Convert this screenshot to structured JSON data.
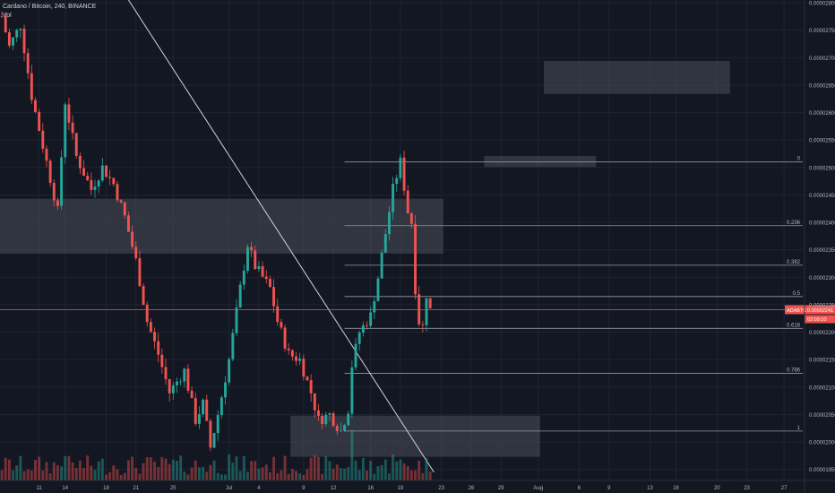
{
  "header": {
    "title": "Cardano / Bitcoin, 240, BINANCE",
    "volume_label": "Vol"
  },
  "colors": {
    "background": "#131722",
    "up": "#26a69a",
    "down": "#ef5350",
    "grid": "#1f2433",
    "text": "#b2b5be",
    "price_line": "#ef5350",
    "zone_fill": "#4a4e59",
    "trendline": "#d1d4dc",
    "fib_line": "#9598a1"
  },
  "chart_data": {
    "type": "candlestick",
    "title": "Cardano / Bitcoin, 240, BINANCE",
    "y_axis": {
      "position": "right",
      "range": [
        1.93e-05,
        2.805e-05
      ],
      "ticks": [
        "0.00002800",
        "0.00002750",
        "0.00002700",
        "0.00002650",
        "0.00002600",
        "0.00002550",
        "0.00002500",
        "0.00002450",
        "0.00002400",
        "0.00002350",
        "0.00002300",
        "0.00002250",
        "0.00002200",
        "0.00002150",
        "0.00002100",
        "0.00002050",
        "0.00002000",
        "0.00001950"
      ],
      "tick_values": [
        2.8e-05,
        2.75e-05,
        2.7e-05,
        2.65e-05,
        2.6e-05,
        2.55e-05,
        2.5e-05,
        2.45e-05,
        2.4e-05,
        2.35e-05,
        2.3e-05,
        2.25e-05,
        2.2e-05,
        2.15e-05,
        2.1e-05,
        2.05e-05,
        2e-05,
        1.95e-05
      ]
    },
    "x_axis": {
      "labels": [
        "11",
        "14",
        "18",
        "21",
        "25",
        "Jul",
        "4",
        "9",
        "12",
        "16",
        "19",
        "23",
        "26",
        "29",
        "Aug",
        "6",
        "9",
        "13",
        "16",
        "20",
        "23",
        "27"
      ],
      "label_slots": [
        10,
        17,
        28,
        36,
        46,
        61,
        69,
        81,
        89,
        99,
        107,
        118,
        126,
        134,
        144,
        155,
        163,
        174,
        181,
        192,
        200,
        210
      ],
      "slot_count": 216
    },
    "grid": true,
    "last_price": {
      "label": "ADABTC",
      "value_text": "0.00002241",
      "value": 2.241e-05,
      "countdown": "02:09:10"
    },
    "fibonacci": [
      {
        "ratio": "0",
        "price": 2.51e-05
      },
      {
        "ratio": "0.236",
        "price": 2.394e-05
      },
      {
        "ratio": "0.382",
        "price": 2.322e-05
      },
      {
        "ratio": "0.5",
        "price": 2.265e-05
      },
      {
        "ratio": "0.618",
        "price": 2.207e-05
      },
      {
        "ratio": "0.786",
        "price": 2.125e-05
      },
      {
        "ratio": "1",
        "price": 2.02e-05
      }
    ],
    "zones": [
      {
        "slot_from": 0,
        "slot_to": 119,
        "price_from": 2.343e-05,
        "price_to": 2.443e-05
      },
      {
        "slot_from": 78,
        "slot_to": 145,
        "price_from": 1.973e-05,
        "price_to": 2.048e-05
      },
      {
        "slot_from": 130,
        "slot_to": 160,
        "price_from": 2.501e-05,
        "price_to": 2.521e-05
      },
      {
        "slot_from": 146,
        "slot_to": 196,
        "price_from": 2.634e-05,
        "price_to": 2.694e-05
      }
    ],
    "trendline": {
      "from": {
        "slot": 34,
        "price": 2.805e-05
      },
      "to": {
        "slot": 116,
        "price": 1.945e-05
      }
    },
    "candle_count": 116,
    "keypoints": [
      [
        0,
        2.775e-05
      ],
      [
        2,
        2.72e-05
      ],
      [
        5,
        2.76e-05
      ],
      [
        8,
        2.63e-05
      ],
      [
        11,
        2.54e-05
      ],
      [
        15,
        2.42e-05
      ],
      [
        17,
        2.62e-05
      ],
      [
        20,
        2.52e-05
      ],
      [
        24,
        2.46e-05
      ],
      [
        27,
        2.5e-05
      ],
      [
        30,
        2.47e-05
      ],
      [
        33,
        2.41e-05
      ],
      [
        36,
        2.33e-05
      ],
      [
        39,
        2.22e-05
      ],
      [
        42,
        2.16e-05
      ],
      [
        45,
        2.09e-05
      ],
      [
        49,
        2.13e-05
      ],
      [
        52,
        2.04e-05
      ],
      [
        54,
        2.07e-05
      ],
      [
        56,
        1.99e-05
      ],
      [
        58,
        2.05e-05
      ],
      [
        61,
        2.15e-05
      ],
      [
        64,
        2.28e-05
      ],
      [
        66,
        2.36e-05
      ],
      [
        68,
        2.32e-05
      ],
      [
        70,
        2.3e-05
      ],
      [
        72,
        2.28e-05
      ],
      [
        74,
        2.22e-05
      ],
      [
        77,
        2.16e-05
      ],
      [
        80,
        2.15e-05
      ],
      [
        83,
        2.09e-05
      ],
      [
        85,
        2.04e-05
      ],
      [
        88,
        2.05e-05
      ],
      [
        91,
        2.02e-05
      ],
      [
        93,
        2.06e-05
      ],
      [
        94,
        2.14e-05
      ],
      [
        96,
        2.2e-05
      ],
      [
        99,
        2.23e-05
      ],
      [
        101,
        2.3e-05
      ],
      [
        103,
        2.38e-05
      ],
      [
        105,
        2.46e-05
      ],
      [
        107,
        2.51e-05
      ],
      [
        109,
        2.42e-05
      ],
      [
        110,
        2.4e-05
      ],
      [
        111,
        2.28e-05
      ],
      [
        112,
        2.22e-05
      ],
      [
        113,
        2.21e-05
      ],
      [
        114,
        2.27e-05
      ],
      [
        115,
        2.24e-05
      ]
    ],
    "volume_peak_candle": 94
  }
}
